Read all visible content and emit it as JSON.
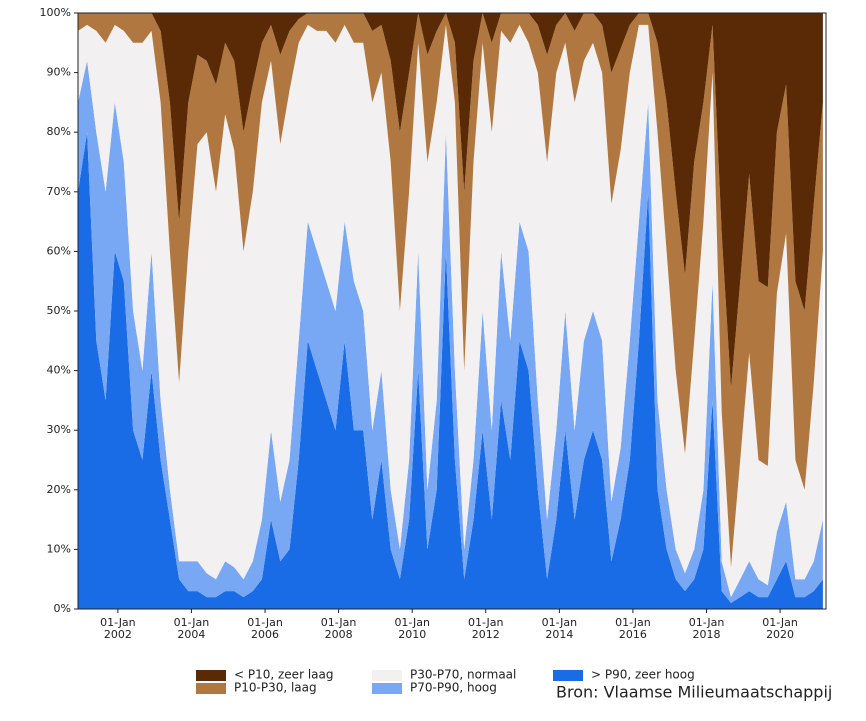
{
  "chart_data": {
    "type": "stacked-area",
    "x": [
      "2000-12-01",
      "2001-03-01",
      "2001-06-01",
      "2001-09-01",
      "2001-12-01",
      "2002-03-01",
      "2002-06-01",
      "2002-09-01",
      "2002-12-01",
      "2003-03-01",
      "2003-06-01",
      "2003-09-01",
      "2003-12-01",
      "2004-03-01",
      "2004-06-01",
      "2004-09-01",
      "2004-12-01",
      "2005-03-01",
      "2005-06-01",
      "2005-09-01",
      "2005-12-01",
      "2006-03-01",
      "2006-06-01",
      "2006-09-01",
      "2006-12-01",
      "2007-03-01",
      "2007-06-01",
      "2007-09-01",
      "2007-12-01",
      "2008-03-01",
      "2008-06-01",
      "2008-09-01",
      "2008-12-01",
      "2009-03-01",
      "2009-06-01",
      "2009-09-01",
      "2009-12-01",
      "2010-03-01",
      "2010-06-01",
      "2010-09-01",
      "2010-12-01",
      "2011-03-01",
      "2011-06-01",
      "2011-09-01",
      "2011-12-01",
      "2012-03-01",
      "2012-06-01",
      "2012-09-01",
      "2012-12-01",
      "2013-03-01",
      "2013-06-01",
      "2013-09-01",
      "2013-12-01",
      "2014-03-01",
      "2014-06-01",
      "2014-09-01",
      "2014-12-01",
      "2015-03-01",
      "2015-06-01",
      "2015-09-01",
      "2015-12-01",
      "2016-03-01",
      "2016-06-01",
      "2016-09-01",
      "2016-12-01",
      "2017-03-01",
      "2017-06-01",
      "2017-09-01",
      "2017-12-01",
      "2018-03-01",
      "2018-06-01",
      "2018-09-01",
      "2018-12-01",
      "2019-03-01",
      "2019-06-01",
      "2019-09-01",
      "2019-12-01",
      "2020-03-01",
      "2020-06-01",
      "2020-09-01",
      "2020-12-01",
      "2021-03-01"
    ],
    "series": [
      {
        "name": "< P10, zeer laag",
        "color": "#5a2a06",
        "values": [
          0,
          0,
          0,
          0,
          0,
          0,
          0,
          0,
          0,
          3,
          15,
          35,
          15,
          7,
          8,
          12,
          5,
          8,
          20,
          12,
          5,
          2,
          7,
          3,
          1,
          0,
          0,
          0,
          0,
          0,
          0,
          0,
          3,
          2,
          8,
          20,
          10,
          0,
          7,
          3,
          0,
          5,
          30,
          8,
          0,
          5,
          0,
          0,
          0,
          0,
          2,
          7,
          2,
          0,
          3,
          0,
          0,
          2,
          10,
          6,
          2,
          0,
          0,
          5,
          15,
          30,
          44,
          25,
          15,
          2,
          37,
          63,
          45,
          27,
          45,
          46,
          20,
          12,
          45,
          50,
          32,
          15
        ]
      },
      {
        "name": "P10-P30, laag",
        "color": "#b07840",
        "values": [
          3,
          2,
          3,
          5,
          2,
          3,
          5,
          5,
          3,
          12,
          25,
          27,
          25,
          15,
          12,
          18,
          12,
          15,
          20,
          18,
          10,
          6,
          15,
          10,
          4,
          2,
          3,
          3,
          5,
          2,
          5,
          5,
          12,
          8,
          17,
          30,
          20,
          5,
          18,
          12,
          2,
          10,
          30,
          17,
          5,
          15,
          3,
          5,
          2,
          5,
          8,
          18,
          8,
          5,
          12,
          8,
          5,
          8,
          22,
          17,
          8,
          2,
          2,
          15,
          25,
          30,
          30,
          30,
          20,
          8,
          30,
          30,
          30,
          30,
          30,
          30,
          27,
          25,
          30,
          30,
          30,
          25
        ]
      },
      {
        "name": "P30-P70, normaal",
        "color": "#f2f0f0",
        "values": [
          12,
          6,
          17,
          25,
          13,
          22,
          45,
          55,
          37,
          50,
          40,
          30,
          52,
          70,
          74,
          65,
          75,
          70,
          55,
          62,
          70,
          62,
          60,
          62,
          50,
          33,
          37,
          42,
          45,
          33,
          40,
          45,
          55,
          50,
          55,
          40,
          45,
          35,
          55,
          50,
          18,
          45,
          30,
          50,
          45,
          50,
          37,
          50,
          33,
          35,
          55,
          60,
          60,
          45,
          55,
          47,
          45,
          45,
          50,
          50,
          45,
          33,
          13,
          45,
          40,
          30,
          20,
          35,
          45,
          35,
          25,
          5,
          20,
          35,
          20,
          20,
          40,
          45,
          20,
          15,
          30,
          45
        ]
      },
      {
        "name": "P70-P90, hoog",
        "color": "#78a8f4",
        "values": [
          15,
          12,
          35,
          35,
          25,
          20,
          20,
          15,
          20,
          10,
          5,
          3,
          5,
          5,
          4,
          3,
          5,
          4,
          3,
          5,
          10,
          15,
          10,
          15,
          20,
          20,
          20,
          20,
          20,
          20,
          25,
          20,
          15,
          15,
          10,
          5,
          10,
          20,
          10,
          15,
          20,
          15,
          5,
          10,
          20,
          15,
          25,
          20,
          20,
          20,
          15,
          10,
          15,
          20,
          15,
          20,
          20,
          20,
          10,
          12,
          20,
          20,
          15,
          15,
          10,
          5,
          3,
          5,
          10,
          20,
          5,
          1,
          3,
          5,
          3,
          2,
          8,
          10,
          3,
          3,
          5,
          10
        ]
      },
      {
        "name": "> P90, zeer hoog",
        "color": "#1a6be6",
        "values": [
          70,
          80,
          45,
          35,
          60,
          55,
          30,
          25,
          40,
          25,
          15,
          5,
          3,
          3,
          2,
          2,
          3,
          3,
          2,
          3,
          5,
          15,
          8,
          10,
          25,
          45,
          40,
          35,
          30,
          45,
          30,
          30,
          15,
          25,
          10,
          5,
          15,
          40,
          10,
          20,
          60,
          25,
          5,
          15,
          30,
          15,
          35,
          25,
          45,
          40,
          20,
          5,
          15,
          30,
          15,
          25,
          30,
          25,
          8,
          15,
          25,
          45,
          70,
          20,
          10,
          5,
          3,
          5,
          10,
          35,
          3,
          1,
          2,
          3,
          2,
          2,
          5,
          8,
          2,
          2,
          3,
          5
        ]
      }
    ],
    "xlim": [
      "2000-12-01",
      "2021-04-01"
    ],
    "xticks": [
      {
        "value": "2002-01-01",
        "label": "01-Jan\n2002"
      },
      {
        "value": "2004-01-01",
        "label": "01-Jan\n2004"
      },
      {
        "value": "2006-01-01",
        "label": "01-Jan\n2006"
      },
      {
        "value": "2008-01-01",
        "label": "01-Jan\n2008"
      },
      {
        "value": "2010-01-01",
        "label": "01-Jan\n2010"
      },
      {
        "value": "2012-01-01",
        "label": "01-Jan\n2012"
      },
      {
        "value": "2014-01-01",
        "label": "01-Jan\n2014"
      },
      {
        "value": "2016-01-01",
        "label": "01-Jan\n2016"
      },
      {
        "value": "2018-01-01",
        "label": "01-Jan\n2018"
      },
      {
        "value": "2020-01-01",
        "label": "01-Jan\n2020"
      }
    ],
    "ylim": [
      0,
      100
    ],
    "yticks": [
      {
        "value": 0,
        "label": "0%"
      },
      {
        "value": 10,
        "label": "10%"
      },
      {
        "value": 20,
        "label": "20%"
      },
      {
        "value": 30,
        "label": "30%"
      },
      {
        "value": 40,
        "label": "40%"
      },
      {
        "value": 50,
        "label": "50%"
      },
      {
        "value": 60,
        "label": "60%"
      },
      {
        "value": 70,
        "label": "70%"
      },
      {
        "value": 80,
        "label": "80%"
      },
      {
        "value": 90,
        "label": "90%"
      },
      {
        "value": 100,
        "label": "100%"
      }
    ],
    "source": "Bron: Vlaamse Milieumaatschappij"
  }
}
